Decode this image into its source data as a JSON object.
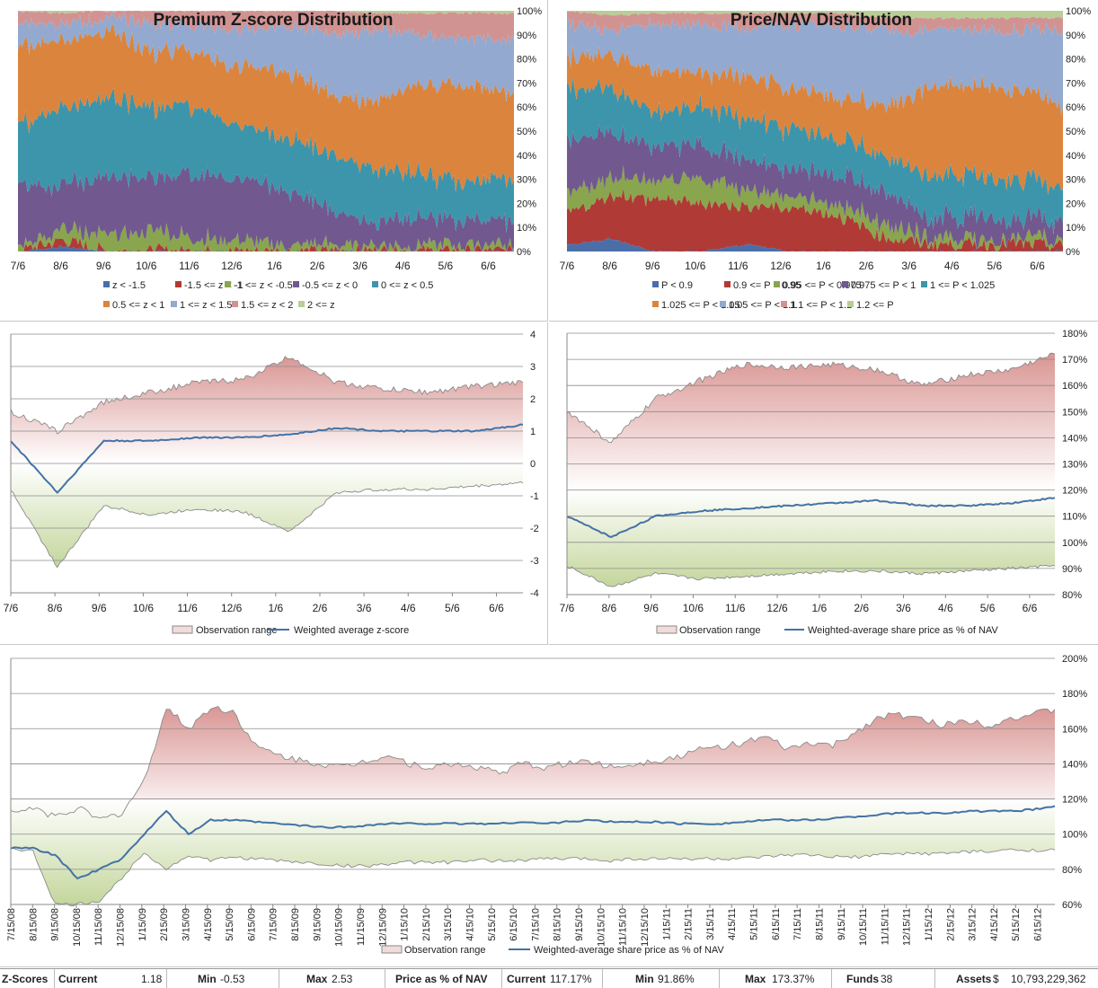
{
  "colors": {
    "dist": [
      "#4a6fa8",
      "#b03a36",
      "#89a54e",
      "#71588f",
      "#3c95ab",
      "#db843d",
      "#93a9cf",
      "#d19392",
      "#b9cd96"
    ],
    "line": "#4572a7",
    "range_stroke": "#8a8a8a",
    "grid": "#8c8c8c"
  },
  "charts": {
    "zdist": {
      "title": "Premium Z-score Distribution",
      "x_ticks": [
        "7/6",
        "8/6",
        "9/6",
        "10/6",
        "11/6",
        "12/6",
        "1/6",
        "2/6",
        "3/6",
        "4/6",
        "5/6",
        "6/6"
      ],
      "y_ticks": [
        "0%",
        "10%",
        "20%",
        "30%",
        "40%",
        "50%",
        "60%",
        "70%",
        "80%",
        "90%",
        "100%"
      ],
      "legend": [
        "z < -1.5",
        "-1.5 <= z < -1",
        "-1 <= z < -0.5",
        "-0.5 <= z < 0",
        "0 <= z < 0.5",
        "0.5 <= z < 1",
        "1 <= z < 1.5",
        "1.5 <= z < 2",
        "2 <= z"
      ]
    },
    "pdist": {
      "title": "Price/NAV Distribution",
      "x_ticks": [
        "7/6",
        "8/6",
        "9/6",
        "10/6",
        "11/6",
        "12/6",
        "1/6",
        "2/6",
        "3/6",
        "4/6",
        "5/6",
        "6/6"
      ],
      "y_ticks": [
        "0%",
        "10%",
        "20%",
        "30%",
        "40%",
        "50%",
        "60%",
        "70%",
        "80%",
        "90%",
        "100%"
      ],
      "legend": [
        "P < 0.9",
        "0.9 <= P < 0.95",
        "0.95 <= P < 0.975",
        "0.975 <= P < 1",
        "1 <= P < 1.025",
        "1.025 <= P < 1.05",
        "1.05 <= P < 1.1",
        "1.1 <= P < 1.2",
        "1.2 <= P"
      ]
    },
    "zscore": {
      "x_ticks": [
        "7/6",
        "8/6",
        "9/6",
        "10/6",
        "11/6",
        "12/6",
        "1/6",
        "2/6",
        "3/6",
        "4/6",
        "5/6",
        "6/6"
      ],
      "y_ticks": [
        "-4",
        "-3",
        "-2",
        "-1",
        "0",
        "1",
        "2",
        "3",
        "4"
      ],
      "legend": [
        "Observation range",
        "Weighted average z-score"
      ]
    },
    "pnav": {
      "x_ticks": [
        "7/6",
        "8/6",
        "9/6",
        "10/6",
        "11/6",
        "12/6",
        "1/6",
        "2/6",
        "3/6",
        "4/6",
        "5/6",
        "6/6"
      ],
      "y_ticks": [
        "80%",
        "90%",
        "100%",
        "110%",
        "120%",
        "130%",
        "140%",
        "150%",
        "160%",
        "170%",
        "180%"
      ],
      "legend": [
        "Observation range",
        "Weighted-average share price as % of NAV"
      ]
    },
    "longterm": {
      "x_ticks": [
        "7/15/08",
        "8/15/08",
        "9/15/08",
        "10/15/08",
        "11/15/08",
        "12/15/08",
        "1/15/09",
        "2/15/09",
        "3/15/09",
        "4/15/09",
        "5/15/09",
        "6/15/09",
        "7/15/09",
        "8/15/09",
        "9/15/09",
        "10/15/09",
        "11/15/09",
        "12/15/09",
        "1/15/10",
        "2/15/10",
        "3/15/10",
        "4/15/10",
        "5/15/10",
        "6/15/10",
        "7/15/10",
        "8/15/10",
        "9/15/10",
        "10/15/10",
        "11/15/10",
        "12/15/10",
        "1/15/11",
        "2/15/11",
        "3/15/11",
        "4/15/11",
        "5/15/11",
        "6/15/11",
        "7/15/11",
        "8/15/11",
        "9/15/11",
        "10/15/11",
        "11/15/11",
        "12/15/11",
        "1/15/12",
        "2/15/12",
        "3/15/12",
        "4/15/12",
        "5/15/12",
        "6/15/12"
      ],
      "y_ticks": [
        "60%",
        "80%",
        "100%",
        "120%",
        "140%",
        "160%",
        "180%",
        "200%"
      ],
      "legend": [
        "Observation range",
        "Weighted-average share price as % of NAV"
      ]
    }
  },
  "chart_data": [
    {
      "type": "area",
      "title": "Premium Z-score Distribution",
      "stacked_percent": true,
      "x": [
        "7/6",
        "8/6",
        "9/6",
        "10/6",
        "11/6",
        "12/6",
        "1/6",
        "2/6",
        "3/6",
        "4/6",
        "5/6",
        "6/6"
      ],
      "series": [
        {
          "name": "z < -1.5",
          "values": [
            0,
            2,
            0,
            0,
            0,
            0,
            0,
            0,
            0,
            0,
            0,
            0
          ]
        },
        {
          "name": "-1.5 <= z < -1",
          "values": [
            0,
            3,
            0,
            0,
            0,
            0,
            0,
            0,
            0,
            0,
            0,
            0
          ]
        },
        {
          "name": "-1 <= z < -0.5",
          "values": [
            3,
            5,
            6,
            8,
            5,
            4,
            2,
            2,
            2,
            2,
            2,
            2
          ]
        },
        {
          "name": "-0.5 <= z < 0",
          "values": [
            25,
            18,
            24,
            22,
            27,
            26,
            22,
            14,
            10,
            12,
            10,
            10
          ]
        },
        {
          "name": "0 <= z < 0.5",
          "values": [
            25,
            32,
            33,
            30,
            28,
            22,
            22,
            24,
            22,
            18,
            16,
            18
          ]
        },
        {
          "name": "0.5 <= z < 1",
          "values": [
            33,
            28,
            28,
            23,
            22,
            25,
            28,
            25,
            28,
            38,
            40,
            36
          ]
        },
        {
          "name": "1 <= z < 1.5",
          "values": [
            10,
            6,
            6,
            12,
            12,
            15,
            20,
            26,
            30,
            20,
            20,
            22
          ]
        },
        {
          "name": "1.5 <= z < 2",
          "values": [
            4,
            5,
            3,
            5,
            6,
            8,
            6,
            9,
            7,
            9,
            11,
            11
          ]
        },
        {
          "name": "2 <= z",
          "values": [
            0,
            1,
            0,
            0,
            0,
            0,
            0,
            0,
            1,
            1,
            1,
            1
          ]
        }
      ]
    },
    {
      "type": "area",
      "title": "Price/NAV Distribution",
      "stacked_percent": true,
      "x": [
        "7/6",
        "8/6",
        "9/6",
        "10/6",
        "11/6",
        "12/6",
        "1/6",
        "2/6",
        "3/6",
        "4/6",
        "5/6",
        "6/6"
      ],
      "series": [
        {
          "name": "P < 0.9",
          "values": [
            3,
            5,
            0,
            0,
            3,
            0,
            0,
            0,
            0,
            0,
            0,
            0
          ]
        },
        {
          "name": "0.9 <= P < 0.95",
          "values": [
            13,
            18,
            22,
            20,
            16,
            18,
            15,
            6,
            3,
            3,
            3,
            2
          ]
        },
        {
          "name": "0.95 <= P < 0.975",
          "values": [
            8,
            8,
            8,
            10,
            7,
            5,
            5,
            6,
            3,
            2,
            2,
            2
          ]
        },
        {
          "name": "0.975 <= P < 1",
          "values": [
            22,
            18,
            14,
            14,
            12,
            12,
            12,
            14,
            8,
            9,
            8,
            8
          ]
        },
        {
          "name": "1 <= P < 1.025",
          "values": [
            22,
            18,
            14,
            16,
            17,
            17,
            15,
            14,
            18,
            17,
            18,
            14
          ]
        },
        {
          "name": "1.025 <= P < 1.05",
          "values": [
            13,
            14,
            17,
            14,
            18,
            16,
            17,
            20,
            36,
            38,
            37,
            34
          ]
        },
        {
          "name": "1.05 <= P < 1.1",
          "values": [
            14,
            10,
            20,
            20,
            20,
            26,
            30,
            32,
            24,
            23,
            24,
            32
          ]
        },
        {
          "name": "1.1 <= P < 1.2",
          "values": [
            5,
            7,
            4,
            5,
            6,
            5,
            5,
            5,
            5,
            5,
            5,
            5
          ]
        },
        {
          "name": "1.2 <= P",
          "values": [
            0,
            2,
            1,
            1,
            1,
            1,
            1,
            3,
            3,
            3,
            3,
            3
          ]
        }
      ]
    },
    {
      "type": "line",
      "x": [
        "7/6",
        "8/6",
        "9/6",
        "10/6",
        "11/6",
        "12/6",
        "1/6",
        "2/6",
        "3/6",
        "4/6",
        "5/6",
        "6/6"
      ],
      "ylim": [
        -4,
        4
      ],
      "series": [
        {
          "name": "Observation range",
          "role": "range",
          "upper": [
            1.6,
            1.0,
            1.9,
            2.2,
            2.5,
            2.6,
            3.3,
            2.5,
            2.3,
            2.2,
            2.4,
            2.5
          ],
          "lower": [
            -0.8,
            -3.2,
            -1.3,
            -1.6,
            -1.4,
            -1.5,
            -2.1,
            -0.9,
            -0.8,
            -0.8,
            -0.7,
            -0.6
          ]
        },
        {
          "name": "Weighted average z-score",
          "values": [
            0.7,
            -0.9,
            0.7,
            0.7,
            0.8,
            0.8,
            0.9,
            1.1,
            1.0,
            1.0,
            1.0,
            1.2
          ]
        }
      ]
    },
    {
      "type": "line",
      "x": [
        "7/6",
        "8/6",
        "9/6",
        "10/6",
        "11/6",
        "12/6",
        "1/6",
        "2/6",
        "3/6",
        "4/6",
        "5/6",
        "6/6"
      ],
      "ylim": [
        80,
        180
      ],
      "series": [
        {
          "name": "Observation range",
          "role": "range",
          "upper": [
            150,
            138,
            155,
            162,
            168,
            167,
            168,
            166,
            160,
            164,
            166,
            172
          ],
          "lower": [
            91,
            83,
            88,
            86,
            87,
            88,
            89,
            89,
            88,
            89,
            90,
            91
          ]
        },
        {
          "name": "Weighted-average share price as % of NAV",
          "values": [
            110,
            102,
            110,
            112,
            113,
            114,
            115,
            116,
            114,
            114,
            115,
            117
          ]
        }
      ]
    },
    {
      "type": "line",
      "x": [
        "7/15/08",
        "8/15/08",
        "9/15/08",
        "10/15/08",
        "11/15/08",
        "12/15/08",
        "1/15/09",
        "2/15/09",
        "3/15/09",
        "4/15/09",
        "5/15/09",
        "6/15/09",
        "7/15/09",
        "8/15/09",
        "9/15/09",
        "10/15/09",
        "11/15/09",
        "12/15/09",
        "1/15/10",
        "2/15/10",
        "3/15/10",
        "4/15/10",
        "5/15/10",
        "6/15/10",
        "7/15/10",
        "8/15/10",
        "9/15/10",
        "10/15/10",
        "11/15/10",
        "12/15/10",
        "1/15/11",
        "2/15/11",
        "3/15/11",
        "4/15/11",
        "5/15/11",
        "6/15/11",
        "7/15/11",
        "8/15/11",
        "9/15/11",
        "10/15/11",
        "11/15/11",
        "12/15/11",
        "1/15/12",
        "2/15/12",
        "3/15/12",
        "4/15/12",
        "5/15/12",
        "6/15/12"
      ],
      "ylim": [
        60,
        200
      ],
      "series": [
        {
          "name": "Observation range",
          "role": "range",
          "upper": [
            112,
            115,
            110,
            115,
            108,
            112,
            130,
            172,
            160,
            172,
            170,
            150,
            145,
            142,
            140,
            138,
            142,
            145,
            140,
            138,
            140,
            138,
            135,
            140,
            138,
            140,
            142,
            138,
            140,
            142,
            144,
            148,
            150,
            152,
            155,
            148,
            152,
            150,
            158,
            166,
            168,
            165,
            162,
            165,
            162,
            166,
            168,
            171
          ],
          "lower": [
            92,
            90,
            60,
            60,
            62,
            75,
            90,
            80,
            88,
            85,
            87,
            86,
            85,
            84,
            83,
            82,
            82,
            83,
            84,
            84,
            84,
            85,
            85,
            85,
            86,
            86,
            86,
            85,
            86,
            86,
            86,
            86,
            86,
            86,
            87,
            88,
            88,
            87,
            87,
            88,
            89,
            89,
            89,
            90,
            90,
            91,
            91,
            91
          ]
        },
        {
          "name": "Weighted-average share price as % of NAV",
          "values": [
            92,
            92,
            88,
            75,
            80,
            86,
            100,
            113,
            100,
            108,
            108,
            107,
            106,
            105,
            104,
            104,
            105,
            106,
            106,
            106,
            106,
            106,
            106,
            107,
            106,
            107,
            108,
            107,
            107,
            107,
            106,
            106,
            106,
            107,
            108,
            108,
            108,
            109,
            110,
            111,
            112,
            112,
            112,
            113,
            113,
            113,
            114,
            116
          ]
        }
      ]
    }
  ],
  "summary": {
    "zscores_label": "Z-Scores",
    "current_label": "Current",
    "current_value": "1.18",
    "min_label": "Min",
    "min_value": "-0.53",
    "max_label": "Max",
    "max_value": "2.53",
    "pnav_label": "Price as % of  NAV",
    "pcurrent_label": "Current",
    "pcurrent_value": "117.17%",
    "pmin_label": "Min",
    "pmin_value": "91.86%",
    "pmax_label": "Max",
    "pmax_value": "173.37%",
    "funds_label": "Funds",
    "funds_value": "38",
    "assets_label": "Assets",
    "assets_currency": "$",
    "assets_value": "10,793,229,362"
  }
}
